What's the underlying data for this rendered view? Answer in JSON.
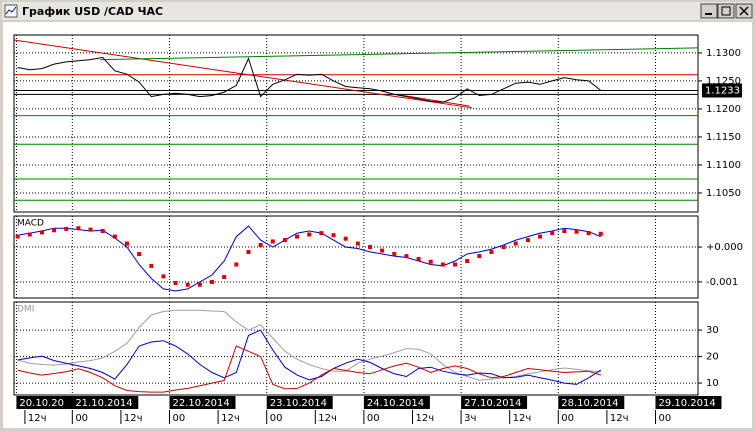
{
  "window": {
    "title": "График USD /CAD ЧАС"
  },
  "x_axis": {
    "xlim": [
      -0.3,
      56
    ],
    "date_ticks": [
      {
        "value": -0.1,
        "label": "20.10.20"
      },
      {
        "value": 4.5,
        "label": "21.10.2014"
      },
      {
        "value": 12.5,
        "label": "22.10.2014"
      },
      {
        "value": 20.5,
        "label": "23.10.2014"
      },
      {
        "value": 28.5,
        "label": "24.10.2014"
      },
      {
        "value": 36.5,
        "label": "27.10.2014"
      },
      {
        "value": 44.5,
        "label": "28.10.2014"
      },
      {
        "value": 52.5,
        "label": "29.10.2014"
      }
    ],
    "hour_ticks": [
      {
        "value": 0.6,
        "label": "12ч"
      },
      {
        "value": 4.5,
        "label": "00"
      },
      {
        "value": 8.5,
        "label": "12ч"
      },
      {
        "value": 12.5,
        "label": "00"
      },
      {
        "value": 16.5,
        "label": "12ч"
      },
      {
        "value": 20.5,
        "label": "00"
      },
      {
        "value": 24.5,
        "label": "12ч"
      },
      {
        "value": 28.5,
        "label": "00"
      },
      {
        "value": 32.5,
        "label": "12ч"
      },
      {
        "value": 36.5,
        "label": "3ч"
      },
      {
        "value": 40.5,
        "label": "12ч"
      },
      {
        "value": 44.5,
        "label": "00"
      },
      {
        "value": 48.5,
        "label": "12ч"
      },
      {
        "value": 52.5,
        "label": "00"
      }
    ]
  },
  "chart_data": [
    {
      "type": "line",
      "ylim": [
        1.1016,
        1.1332
      ],
      "grid": true,
      "yticks": [
        {
          "value": 1.13,
          "label": "1.1300"
        },
        {
          "value": 1.125,
          "label": "1.1250"
        },
        {
          "value": 1.12,
          "label": "1.1200"
        },
        {
          "value": 1.115,
          "label": "1.1150"
        },
        {
          "value": 1.11,
          "label": "1.1100"
        },
        {
          "value": 1.105,
          "label": "1.1050"
        }
      ],
      "last_value": 1.1233,
      "levels": [
        {
          "value": 1.1261,
          "color": "#cc0000"
        },
        {
          "value": 1.1233,
          "color": "#000000"
        },
        {
          "value": 1.1226,
          "color": "#000000"
        },
        {
          "value": 1.1188,
          "color": "#008000"
        },
        {
          "value": 1.1137,
          "color": "#008000"
        },
        {
          "value": 1.1075,
          "color": "#008000"
        },
        {
          "value": 1.1037,
          "color": "#008000"
        }
      ],
      "trendlines": [
        {
          "x": [
            -0.3,
            37.4
          ],
          "y": [
            1.1323,
            1.1202
          ],
          "color": "#cc0000"
        },
        {
          "x": [
            6.8,
            56
          ],
          "y": [
            1.1288,
            1.1309
          ],
          "color": "#008000"
        },
        {
          "x": [
            31.5,
            37.2
          ],
          "y": [
            1.1225,
            1.1205
          ],
          "color": "#cc0000"
        }
      ],
      "series": [
        {
          "color": "#000000",
          "style": "line",
          "values": [
            1.1274,
            1.127,
            1.1272,
            1.128,
            1.1284,
            1.1286,
            1.1288,
            1.1292,
            1.1268,
            1.1262,
            1.1248,
            1.1222,
            1.1226,
            1.1228,
            1.1226,
            1.1222,
            1.1224,
            1.123,
            1.1242,
            1.129,
            1.1222,
            1.1244,
            1.1252,
            1.1262,
            1.126,
            1.1262,
            1.125,
            1.124,
            1.1238,
            1.1236,
            1.1232,
            1.1226,
            1.1222,
            1.1218,
            1.1214,
            1.1212,
            1.122,
            1.1236,
            1.1224,
            1.1226,
            1.1236,
            1.1246,
            1.1248,
            1.1244,
            1.125,
            1.1256,
            1.1252,
            1.125,
            1.1233
          ]
        }
      ]
    },
    {
      "type": "line",
      "title": "MACD",
      "ylim": [
        -0.00146,
        0.00089
      ],
      "grid": true,
      "yticks": [
        {
          "value": 0,
          "label": "+0.000"
        },
        {
          "value": -0.001,
          "label": "-0.001"
        }
      ],
      "series": [
        {
          "color": "#0000cc",
          "style": "line",
          "values": [
            0.00034,
            0.0004,
            0.00046,
            0.00054,
            0.00054,
            0.0005,
            0.00046,
            0.00048,
            0.00026,
            0,
            -0.0005,
            -0.0009,
            -0.0012,
            -0.00126,
            -0.0012,
            -0.001,
            -0.0008,
            -0.0004,
            0.0003,
            0.0006,
            0.0002,
            0,
            0.0002,
            0.0004,
            0.00046,
            0.0004,
            0.0002,
            0,
            -4e-05,
            -0.00014,
            -0.0002,
            -0.00026,
            -0.0003,
            -0.0004,
            -0.0005,
            -0.00054,
            -0.0004,
            -0.0002,
            -0.00014,
            -6e-05,
            6e-05,
            0.0002,
            0.0003,
            0.0004,
            0.00046,
            0.00054,
            0.0005,
            0.00044,
            0.0003
          ]
        },
        {
          "color": "#dd0000",
          "style": "markers",
          "values": [
            0.0003,
            0.00036,
            0.00042,
            0.00048,
            0.00052,
            0.00054,
            0.0005,
            0.00046,
            0.0003,
            0.0001,
            -0.0002,
            -0.00054,
            -0.00084,
            -0.00103,
            -0.00108,
            -0.00108,
            -0.001,
            -0.00086,
            -0.0005,
            -0.00014,
            6e-05,
            0.00016,
            0.0002,
            0.0003,
            0.00036,
            0.0004,
            0.00034,
            0.00024,
            0.0001,
            0,
            -0.0001,
            -0.0002,
            -0.00026,
            -0.00034,
            -0.00042,
            -0.0005,
            -0.0005,
            -0.0004,
            -0.00026,
            -0.00014,
            0,
            0.0001,
            0.0002,
            0.0003,
            0.0004,
            0.00046,
            0.00044,
            0.0004,
            0.00038
          ]
        }
      ]
    },
    {
      "type": "line",
      "title": "DMI",
      "ylim": [
        5.5,
        40.6
      ],
      "grid": true,
      "yticks": [
        30,
        20,
        10
      ],
      "series": [
        {
          "color": "#a0a0a0",
          "style": "line",
          "values": [
            18.7,
            17.5,
            17,
            16.8,
            17.2,
            18,
            18.5,
            19.5,
            22,
            25,
            31,
            35.7,
            37,
            37.5,
            37.5,
            37.5,
            37.2,
            37,
            33,
            30,
            32,
            27,
            22,
            19,
            17,
            15.5,
            14.5,
            14.5,
            17.5,
            19,
            20.2,
            21.5,
            23,
            22.8,
            21,
            17,
            14,
            12.5,
            11.1,
            11.5,
            12,
            12.5,
            13.5,
            14.2,
            15,
            15.7,
            15.2,
            14.6,
            14.2
          ]
        },
        {
          "color": "#0000cc",
          "style": "line",
          "values": [
            18.7,
            19.5,
            20.2,
            18.5,
            17.5,
            16.5,
            15.5,
            14,
            11.5,
            17,
            24,
            25.5,
            26,
            24,
            21,
            17,
            14,
            12,
            14,
            28,
            30,
            22.5,
            16,
            13,
            11.2,
            12.5,
            15.5,
            17.5,
            19,
            17.8,
            15.5,
            13.5,
            12.5,
            15.5,
            16,
            14.5,
            13.5,
            13,
            13.8,
            13.5,
            12,
            12.2,
            13,
            12,
            11.1,
            10,
            9.5,
            12,
            14.9
          ]
        },
        {
          "color": "#cc0000",
          "style": "line",
          "values": [
            14.9,
            13.8,
            13,
            13.6,
            14.3,
            15.4,
            14,
            12,
            9,
            7.2,
            6.8,
            6.6,
            6.6,
            7.4,
            8,
            9,
            10,
            11,
            24,
            22,
            20,
            9.5,
            7.8,
            8,
            10,
            13,
            15.5,
            14.8,
            14,
            13.5,
            15,
            16.5,
            17.5,
            16,
            14,
            15.5,
            16.5,
            15.5,
            13.5,
            12,
            12.5,
            14,
            15.5,
            15,
            14.5,
            14,
            14.2,
            14.5,
            13
          ]
        }
      ]
    }
  ]
}
